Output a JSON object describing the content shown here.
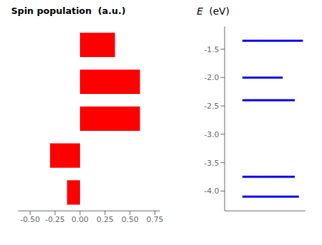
{
  "chart_data": [
    {
      "type": "bar",
      "title": "Spin population  (a.u.)",
      "orientation": "horizontal",
      "categories": [
        null,
        null,
        null,
        null,
        null
      ],
      "values": [
        0.35,
        0.6,
        0.6,
        -0.3,
        -0.13
      ],
      "color": "#ff0000",
      "xlim": [
        -0.62,
        0.8
      ],
      "xticks": [
        {
          "value": -0.5,
          "label": "-0.50"
        },
        {
          "value": -0.25,
          "label": "-0.25"
        },
        {
          "value": 0.0,
          "label": "0.00"
        },
        {
          "value": 0.25,
          "label": "0.25"
        },
        {
          "value": 0.5,
          "label": "0.50"
        },
        {
          "value": 0.75,
          "label": "0.75"
        }
      ],
      "tick_labels": "x",
      "grid": false
    },
    {
      "type": "levels",
      "title": "E  (eV)",
      "values": [
        -1.35,
        -2.0,
        -2.4,
        -3.75,
        -4.1
      ],
      "x_start": 0.22,
      "lengths": [
        0.75,
        0.5,
        0.65,
        0.65,
        0.7
      ],
      "color": "#0000ee",
      "xlim": [
        0,
        1.0
      ],
      "ylim": [
        -4.35,
        -1.1
      ],
      "yticks": [
        -1.5,
        {
          "value": -2.0,
          "label": "-2.0"
        },
        -2.5,
        {
          "value": -3.0,
          "label": "-3.0"
        },
        -3.5,
        {
          "value": -4.0,
          "label": "-4.0"
        }
      ],
      "tick_labels": "y",
      "grid": false
    }
  ]
}
